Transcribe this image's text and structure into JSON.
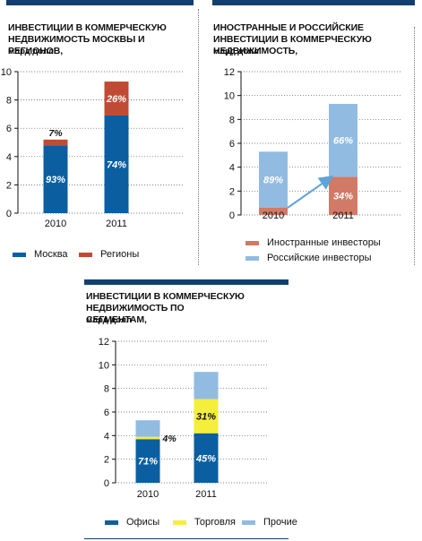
{
  "colors": {
    "header_bar": "#123f6e",
    "moscow": "#0b5fa0",
    "regions": "#c04b35",
    "foreign": "#d07a67",
    "russian": "#92bbe1",
    "offices": "#0b5fa0",
    "retail": "#f4ef3a",
    "other": "#92bbe1"
  },
  "chart_data": [
    {
      "type": "bar",
      "stacked": true,
      "title": "ИНВЕСТИЦИИ В КОММЕРЧЕСКУЮ НЕДВИЖИМОСТЬ МОСКВЫ И РЕГИОНОВ,",
      "unit": "млрд долл",
      "categories": [
        "2010",
        "2011"
      ],
      "ylim": [
        0,
        10
      ],
      "yticks": [
        "0",
        "2",
        "4",
        "6",
        "8",
        "10"
      ],
      "series": [
        {
          "name": "Москва",
          "color": "#0b5fa0",
          "values": [
            4.8,
            6.9
          ],
          "labels": [
            "93%",
            "74%"
          ]
        },
        {
          "name": "Регионы",
          "color": "#c04b35",
          "values": [
            0.4,
            2.4
          ],
          "labels": [
            "7%",
            "26%"
          ]
        }
      ],
      "legend": [
        "Москва",
        "Регионы"
      ]
    },
    {
      "type": "bar",
      "stacked": true,
      "title": "ИНОСТРАННЫЕ И РОССИЙСКИЕ ИНВЕСТИЦИИ В КОММЕРЧЕСКУЮ НЕДВИЖИМОСТЬ,",
      "unit": "млрд долл",
      "categories": [
        "2010",
        "2011"
      ],
      "ylim": [
        0,
        12
      ],
      "yticks": [
        "0",
        "2",
        "4",
        "6",
        "8",
        "10",
        "12"
      ],
      "series": [
        {
          "name": "Иностранные инвесторы",
          "color": "#d07a67",
          "values": [
            0.6,
            3.2
          ],
          "labels": [
            "",
            "34%"
          ]
        },
        {
          "name": "Российские инвесторы",
          "color": "#92bbe1",
          "values": [
            4.7,
            6.1
          ],
          "labels": [
            "89%",
            "66%"
          ]
        }
      ],
      "legend": [
        "Иностранные инвесторы",
        "Российские инвесторы"
      ],
      "arrow": {
        "from": [
          "2010",
          0.6
        ],
        "to": [
          "2011",
          3.2
        ]
      }
    },
    {
      "type": "bar",
      "stacked": true,
      "title": "ИНВЕСТИЦИИ В КОММЕРЧЕСКУЮ НЕДВИЖИМОСТЬ ПО СЕГМЕНТАМ,",
      "unit": "млрд долл",
      "categories": [
        "2010",
        "2011"
      ],
      "ylim": [
        0,
        12
      ],
      "yticks": [
        "0",
        "2",
        "4",
        "6",
        "8",
        "10",
        "12"
      ],
      "series": [
        {
          "name": "Офисы",
          "color": "#0b5fa0",
          "values": [
            3.7,
            4.2
          ],
          "labels": [
            "71%",
            "45%"
          ]
        },
        {
          "name": "Торговля",
          "color": "#f4ef3a",
          "values": [
            0.2,
            2.9
          ],
          "labels": [
            "4%",
            "31%"
          ]
        },
        {
          "name": "Прочие",
          "color": "#92bbe1",
          "values": [
            1.4,
            2.3
          ],
          "labels": [
            "",
            ""
          ]
        }
      ],
      "legend": [
        "Офисы",
        "Торговля",
        "Прочие"
      ]
    }
  ]
}
